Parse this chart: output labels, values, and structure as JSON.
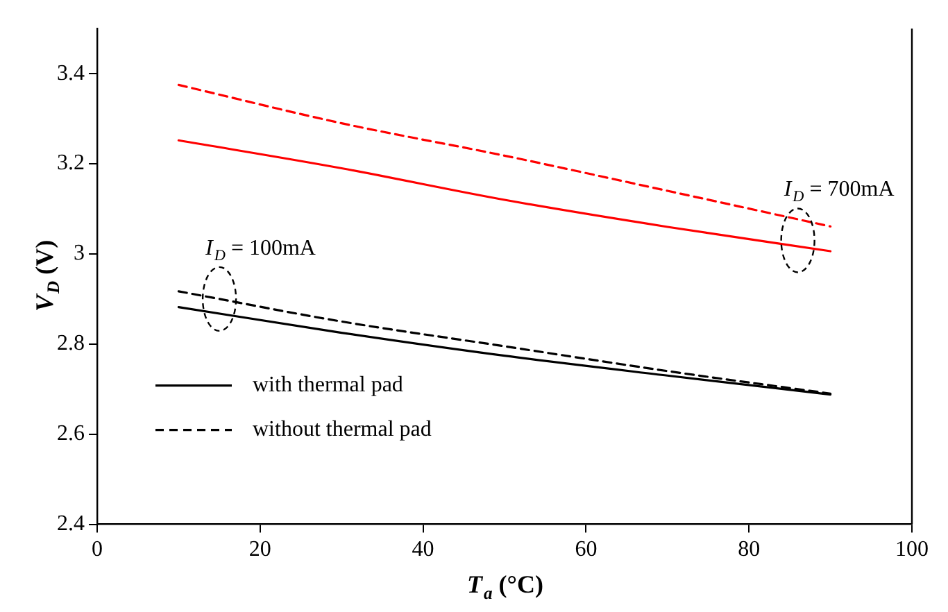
{
  "chart_data": {
    "type": "line",
    "xlabel": "T$_{a}$ (°C)",
    "ylabel": "V$_{D}$ (V)",
    "x": [
      10,
      30,
      50,
      70,
      90
    ],
    "series": [
      {
        "name": "with thermal pad",
        "color": "#000000",
        "line_style": "solid",
        "values": [
          2.882,
          2.825,
          2.774,
          2.73,
          2.688
        ]
      },
      {
        "name": "without thermal pad",
        "color": "#000000",
        "line_style": "dashed",
        "values": [
          2.917,
          2.85,
          2.795,
          2.74,
          2.69
        ]
      },
      {
        "color": "#ff0000",
        "line_style": "solid",
        "values": [
          3.252,
          3.19,
          3.12,
          3.06,
          3.006
        ]
      },
      {
        "color": "#ff0000",
        "line_style": "dashed",
        "values": [
          3.375,
          3.29,
          3.218,
          3.14,
          3.061
        ]
      }
    ],
    "xlim": [
      0,
      100
    ],
    "xticks": [
      0,
      20,
      40,
      60,
      80,
      100
    ],
    "ylim": [
      2.4,
      3.5
    ],
    "yticks": [
      2.4,
      2.6,
      2.8,
      3,
      3.2,
      3.4
    ],
    "grid": false,
    "legend": "bottom left",
    "marker": "none",
    "annotations": [
      {
        "text": "I$_{D}$ = 100mA",
        "x": 15,
        "y": 2.9
      },
      {
        "text": "I$_{D}$ = 700mA",
        "x": 86,
        "y": 3.03
      }
    ]
  }
}
